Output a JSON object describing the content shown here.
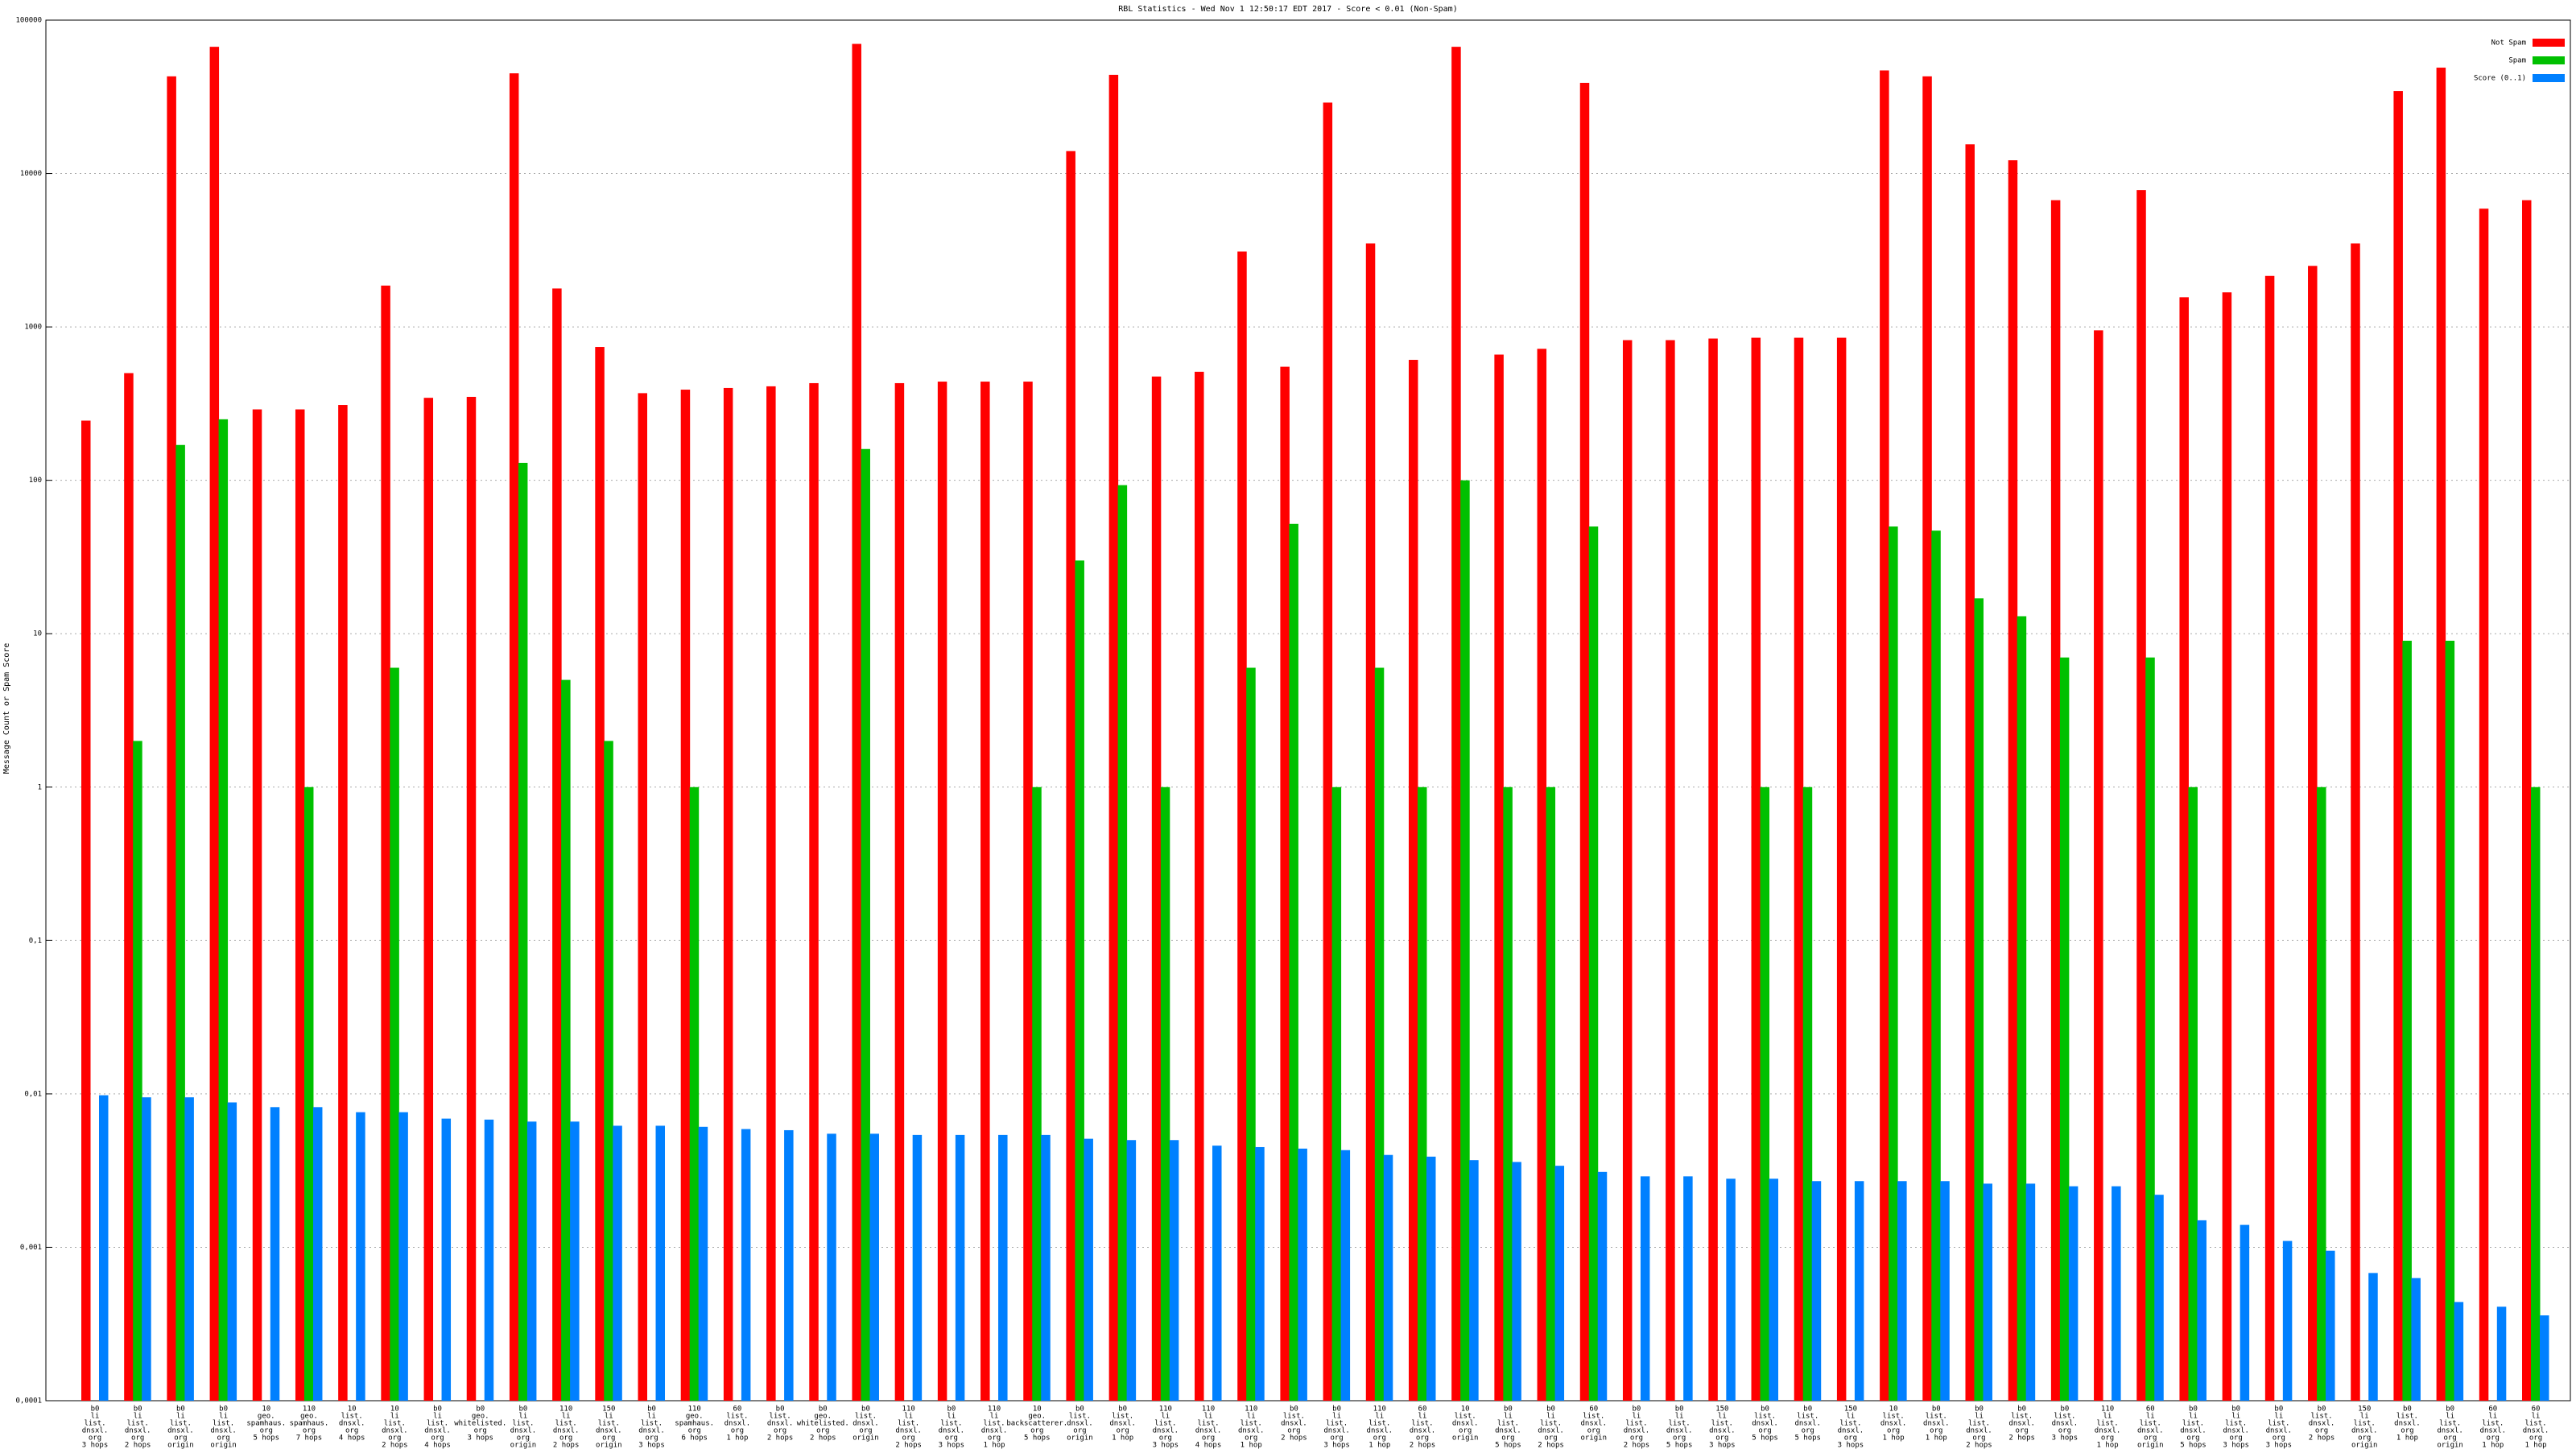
{
  "chart_data": {
    "type": "bar",
    "title": "RBL Statistics - Wed Nov  1 12:50:17 EDT 2017 - Score < 0.01 (Non-Spam)",
    "y_label": "Message Count or Spam Score",
    "log_y": true,
    "grid": true,
    "legend": "top-right",
    "ylim": [
      0.0001,
      100000
    ],
    "yticks": [
      {
        "value": 0.0001,
        "label": "0,0001"
      },
      {
        "value": 0.001,
        "label": "0,001"
      },
      {
        "value": 0.01,
        "label": "0,01"
      },
      {
        "value": 0.1,
        "label": "0,1"
      },
      1,
      10,
      100,
      1000,
      10000,
      100000
    ],
    "categories": [
      [
        "b0",
        "li",
        "list.",
        "dnsxl.",
        "org",
        "3 hops"
      ],
      [
        "b0",
        "li",
        "list.",
        "dnsxl.",
        "org",
        "2 hops"
      ],
      [
        "b0",
        "li",
        "list.",
        "dnsxl.",
        "org",
        "origin"
      ],
      [
        "b0",
        "li",
        "list.",
        "dnsxl.",
        "org",
        "origin"
      ],
      [
        "10",
        "geo.",
        "spamhaus.",
        "org",
        "5 hops"
      ],
      [
        "110",
        "geo.",
        "spamhaus.",
        "org",
        "7 hops"
      ],
      [
        "10",
        "list.",
        "dnsxl.",
        "org",
        "4 hops"
      ],
      [
        "10",
        "li",
        "list.",
        "dnsxl.",
        "org",
        "2 hops"
      ],
      [
        "b0",
        "li",
        "list.",
        "dnsxl.",
        "org",
        "4 hops"
      ],
      [
        "b0",
        "geo.",
        "whitelisted.",
        "org",
        "3 hops"
      ],
      [
        "b0",
        "li",
        "list.",
        "dnsxl.",
        "org",
        "origin"
      ],
      [
        "110",
        "li",
        "list.",
        "dnsxl.",
        "org",
        "2 hops"
      ],
      [
        "150",
        "li",
        "list.",
        "dnsxl.",
        "org",
        "origin"
      ],
      [
        "b0",
        "li",
        "list.",
        "dnsxl.",
        "org",
        "3 hops"
      ],
      [
        "110",
        "geo.",
        "spamhaus.",
        "org",
        "6 hops"
      ],
      [
        "60",
        "list.",
        "dnsxl.",
        "org",
        "1 hop"
      ],
      [
        "b0",
        "list.",
        "dnsxl.",
        "org",
        "2 hops"
      ],
      [
        "b0",
        "geo.",
        "whitelisted.",
        "org",
        "2 hops"
      ],
      [
        "b0",
        "list.",
        "dnsxl.",
        "org",
        "origin"
      ],
      [
        "110",
        "li",
        "list.",
        "dnsxl.",
        "org",
        "2 hops"
      ],
      [
        "b0",
        "li",
        "list.",
        "dnsxl.",
        "org",
        "3 hops"
      ],
      [
        "110",
        "li",
        "list.",
        "dnsxl.",
        "org",
        "1 hop"
      ],
      [
        "10",
        "geo.",
        "backscatterer.",
        "org",
        "5 hops"
      ],
      [
        "b0",
        "list.",
        "dnsxl.",
        "org",
        "origin"
      ],
      [
        "b0",
        "list.",
        "dnsxl.",
        "org",
        "1 hop"
      ],
      [
        "110",
        "li",
        "list.",
        "dnsxl.",
        "org",
        "3 hops"
      ],
      [
        "110",
        "li",
        "list.",
        "dnsxl.",
        "org",
        "4 hops"
      ],
      [
        "110",
        "li",
        "list.",
        "dnsxl.",
        "org",
        "1 hop"
      ],
      [
        "b0",
        "list.",
        "dnsxl.",
        "org",
        "2 hops"
      ],
      [
        "b0",
        "li",
        "list.",
        "dnsxl.",
        "org",
        "3 hops"
      ],
      [
        "110",
        "li",
        "list.",
        "dnsxl.",
        "org",
        "1 hop"
      ],
      [
        "60",
        "li",
        "list.",
        "dnsxl.",
        "org",
        "2 hops"
      ],
      [
        "10",
        "list.",
        "dnsxl.",
        "org",
        "origin"
      ],
      [
        "b0",
        "li",
        "list.",
        "dnsxl.",
        "org",
        "5 hops"
      ],
      [
        "b0",
        "li",
        "list.",
        "dnsxl.",
        "org",
        "2 hops"
      ],
      [
        "60",
        "list.",
        "dnsxl.",
        "org",
        "origin"
      ],
      [
        "b0",
        "li",
        "list.",
        "dnsxl.",
        "org",
        "2 hops"
      ],
      [
        "b0",
        "li",
        "list.",
        "dnsxl.",
        "org",
        "5 hops"
      ],
      [
        "150",
        "li",
        "list.",
        "dnsxl.",
        "org",
        "3 hops"
      ],
      [
        "b0",
        "list.",
        "dnsxl.",
        "org",
        "5 hops"
      ],
      [
        "b0",
        "list.",
        "dnsxl.",
        "org",
        "5 hops"
      ],
      [
        "150",
        "li",
        "list.",
        "dnsxl.",
        "org",
        "3 hops"
      ],
      [
        "10",
        "list.",
        "dnsxl.",
        "org",
        "1 hop"
      ],
      [
        "b0",
        "list.",
        "dnsxl.",
        "org",
        "1 hop"
      ],
      [
        "b0",
        "li",
        "list.",
        "dnsxl.",
        "org",
        "2 hops"
      ],
      [
        "b0",
        "list.",
        "dnsxl.",
        "org",
        "2 hops"
      ],
      [
        "b0",
        "list.",
        "dnsxl.",
        "org",
        "3 hops"
      ],
      [
        "110",
        "li",
        "list.",
        "dnsxl.",
        "org",
        "1 hop"
      ],
      [
        "60",
        "li",
        "list.",
        "dnsxl.",
        "org",
        "origin"
      ],
      [
        "b0",
        "li",
        "list.",
        "dnsxl.",
        "org",
        "5 hops"
      ],
      [
        "b0",
        "li",
        "list.",
        "dnsxl.",
        "org",
        "3 hops"
      ],
      [
        "b0",
        "li",
        "list.",
        "dnsxl.",
        "org",
        "3 hops"
      ],
      [
        "b0",
        "list.",
        "dnsxl.",
        "org",
        "2 hops"
      ],
      [
        "150",
        "li",
        "list.",
        "dnsxl.",
        "org",
        "origin"
      ],
      [
        "b0",
        "list.",
        "dnsxl.",
        "org",
        "1 hop"
      ],
      [
        "b0",
        "li",
        "list.",
        "dnsxl.",
        "org",
        "origin"
      ],
      [
        "60",
        "li",
        "list.",
        "dnsxl.",
        "org",
        "1 hop"
      ],
      [
        "60",
        "li",
        "list.",
        "dnsxl.",
        "org",
        "1 hop"
      ]
    ],
    "series": [
      {
        "name": "Not Spam",
        "color": "#ff0000",
        "values": [
          245,
          500,
          43000,
          67000,
          290,
          290,
          310,
          1860,
          345,
          350,
          45000,
          1780,
          740,
          370,
          390,
          400,
          410,
          430,
          70000,
          430,
          440,
          440,
          440,
          14000,
          44000,
          475,
          510,
          3100,
          550,
          29000,
          3500,
          610,
          67000,
          660,
          720,
          39000,
          820,
          820,
          840,
          850,
          850,
          850,
          47000,
          43000,
          15500,
          12200,
          6700,
          950,
          7800,
          1560,
          1680,
          2150,
          2500,
          3500,
          34500,
          49000,
          5900,
          6700
        ]
      },
      {
        "name": "Spam",
        "color": "#00c000",
        "values": [
          null,
          2,
          170,
          250,
          null,
          1,
          null,
          6,
          null,
          null,
          130,
          5,
          2,
          null,
          1,
          null,
          null,
          null,
          160,
          null,
          null,
          null,
          1,
          30,
          93,
          1,
          null,
          6,
          52,
          1,
          6,
          1,
          100,
          1,
          1,
          50,
          null,
          null,
          null,
          1,
          1,
          null,
          50,
          47,
          17,
          13,
          7,
          null,
          7,
          1,
          null,
          null,
          1,
          null,
          9,
          9,
          null,
          1
        ]
      },
      {
        "name": "Score (0..1)",
        "color": "#0080ff",
        "values": [
          0.0098,
          0.0095,
          0.0095,
          0.0088,
          0.0082,
          0.0082,
          0.0076,
          0.0076,
          0.0069,
          0.0068,
          0.0066,
          0.0066,
          0.0062,
          0.0062,
          0.0061,
          0.0059,
          0.0058,
          0.0055,
          0.0055,
          0.0054,
          0.0054,
          0.0054,
          0.0054,
          0.0051,
          0.005,
          0.005,
          0.0046,
          0.0045,
          0.0044,
          0.0043,
          0.004,
          0.0039,
          0.0037,
          0.0036,
          0.0034,
          0.0031,
          0.0029,
          0.0029,
          0.0028,
          0.0028,
          0.0027,
          0.0027,
          0.0027,
          0.0027,
          0.0026,
          0.0026,
          0.0025,
          0.0025,
          0.0022,
          0.0015,
          0.0014,
          0.0011,
          0.00095,
          0.00068,
          0.00063,
          0.00044,
          0.00041,
          0.00036
        ]
      }
    ]
  }
}
